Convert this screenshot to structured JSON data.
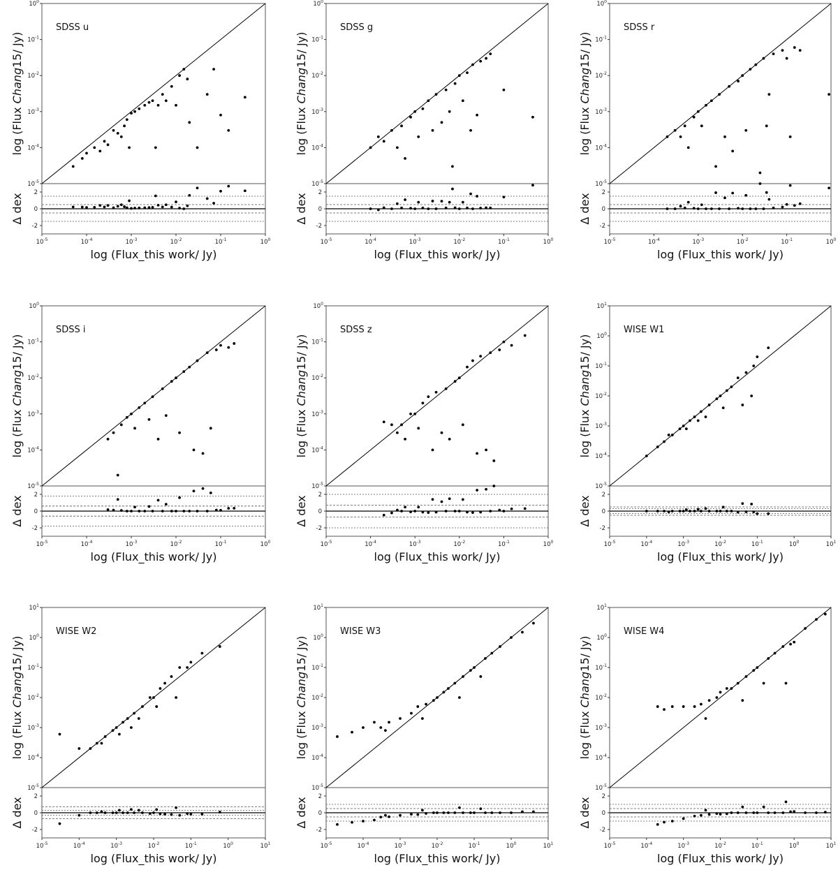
{
  "figure": {
    "xlabel": "log (Flux_this work/ Jy)",
    "ylabel_main": "log (Flux ",
    "ylabel_italic": "Chang",
    "ylabel_rest": "15/ Jy)",
    "resid_ylabel": "Δ dex",
    "resid_ticks": [
      -2,
      0,
      2
    ],
    "resid_range": [
      -3,
      3
    ],
    "colors": {
      "points": "#000000",
      "axes": "#555555",
      "guides": "#555555"
    }
  },
  "chart_data": [
    {
      "type": "scatter",
      "title": "SDSS u",
      "xlim_exp": [
        -5,
        0
      ],
      "ylim_exp": [
        -5,
        0
      ],
      "resid_lines": [
        0.5,
        -0.5,
        1.5,
        -1.5
      ],
      "x": [
        0.0003,
        0.0005,
        0.0002,
        0.0008,
        0.0004,
        0.001,
        0.002,
        0.0006,
        0.0015,
        0.003,
        0.005,
        0.008,
        0.012,
        0.015,
        0.018,
        0.0001,
        0.00015,
        0.00025,
        0.0007,
        0.0012,
        0.0025,
        0.004,
        0.006,
        0.01,
        0.02,
        0.03,
        0.05,
        0.07,
        0.1,
        0.15,
        0.35,
        5e-05,
        8e-05,
        0.0009,
        0.0035
      ],
      "y": [
        0.00012,
        0.00025,
        8e-05,
        0.0006,
        0.0003,
        0.0009,
        0.0015,
        0.0002,
        0.0012,
        0.002,
        0.003,
        0.005,
        0.01,
        0.015,
        0.008,
        7e-05,
        0.0001,
        0.00015,
        0.0004,
        0.001,
        0.0018,
        0.0015,
        0.002,
        0.0015,
        0.0005,
        0.0001,
        0.003,
        0.015,
        0.0008,
        0.0003,
        0.0025,
        3e-05,
        5e-05,
        0.0001,
        0.0001
      ]
    },
    {
      "type": "scatter",
      "title": "SDSS g",
      "xlim_exp": [
        -5,
        0
      ],
      "ylim_exp": [
        -5,
        0
      ],
      "resid_lines": [
        0.5,
        -0.5,
        1.5,
        -1.5
      ],
      "x": [
        0.0002,
        0.0003,
        0.0005,
        0.0008,
        0.001,
        0.0015,
        0.002,
        0.003,
        0.005,
        0.008,
        0.01,
        0.015,
        0.02,
        0.03,
        0.04,
        0.05,
        0.0004,
        0.0006,
        0.0012,
        0.0025,
        0.004,
        0.006,
        0.012,
        0.025,
        0.0001,
        0.00015,
        0.007,
        0.018,
        0.1,
        0.45
      ],
      "y": [
        0.00015,
        0.0003,
        0.0004,
        0.0007,
        0.001,
        0.0012,
        0.002,
        0.003,
        0.004,
        0.006,
        0.01,
        0.012,
        0.02,
        0.025,
        0.03,
        0.04,
        0.0001,
        5e-05,
        0.0002,
        0.0003,
        0.0005,
        0.001,
        0.002,
        0.0008,
        0.0001,
        0.0002,
        3e-05,
        0.0003,
        0.004,
        0.0007
      ]
    },
    {
      "type": "scatter",
      "title": "SDSS r",
      "xlim_exp": [
        -5,
        0
      ],
      "ylim_exp": [
        -5,
        0
      ],
      "resid_lines": [
        0.5,
        -0.5,
        1.5,
        -1.5
      ],
      "x": [
        0.0003,
        0.0005,
        0.0008,
        0.001,
        0.0015,
        0.002,
        0.003,
        0.005,
        0.008,
        0.01,
        0.015,
        0.02,
        0.03,
        0.05,
        0.08,
        0.1,
        0.15,
        0.2,
        0.0004,
        0.0006,
        0.0012,
        0.0025,
        0.004,
        0.006,
        0.012,
        0.025,
        0.04,
        0.0002,
        0.035,
        0.12,
        0.9
      ],
      "y": [
        0.0003,
        0.0004,
        0.0007,
        0.001,
        0.0015,
        0.002,
        0.003,
        0.005,
        0.007,
        0.01,
        0.015,
        0.02,
        0.03,
        0.04,
        0.05,
        0.03,
        0.06,
        0.05,
        0.0002,
        0.0001,
        0.0004,
        3e-05,
        0.0002,
        8e-05,
        0.0003,
        2e-05,
        0.003,
        0.0002,
        0.0004,
        0.0002,
        0.003
      ]
    },
    {
      "type": "scatter",
      "title": "SDSS i",
      "xlim_exp": [
        -5,
        0
      ],
      "ylim_exp": [
        -5,
        0
      ],
      "resid_lines": [
        0.6,
        -0.6,
        1.8,
        -1.8
      ],
      "x": [
        0.0004,
        0.0006,
        0.0008,
        0.001,
        0.0015,
        0.002,
        0.003,
        0.005,
        0.008,
        0.01,
        0.015,
        0.02,
        0.03,
        0.05,
        0.08,
        0.1,
        0.15,
        0.2,
        0.0012,
        0.0025,
        0.004,
        0.006,
        0.012,
        0.025,
        0.04,
        0.06,
        0.0005,
        0.0003
      ],
      "y": [
        0.0003,
        0.0005,
        0.0008,
        0.001,
        0.0015,
        0.002,
        0.003,
        0.005,
        0.008,
        0.01,
        0.015,
        0.02,
        0.03,
        0.05,
        0.06,
        0.08,
        0.07,
        0.09,
        0.0004,
        0.0007,
        0.0002,
        0.0009,
        0.0003,
        0.0001,
        8e-05,
        0.0004,
        2e-05,
        0.0002
      ]
    },
    {
      "type": "scatter",
      "title": "SDSS z",
      "xlim_exp": [
        -5,
        0
      ],
      "ylim_exp": [
        -5,
        0
      ],
      "resid_lines": [
        0.7,
        -0.7,
        2.0,
        -2.0
      ],
      "x": [
        0.0003,
        0.0005,
        0.0008,
        0.001,
        0.0015,
        0.002,
        0.003,
        0.005,
        0.008,
        0.01,
        0.015,
        0.02,
        0.03,
        0.05,
        0.08,
        0.1,
        0.15,
        0.3,
        0.0004,
        0.0006,
        0.0012,
        0.0025,
        0.004,
        0.006,
        0.012,
        0.025,
        0.04,
        0.06,
        0.0002
      ],
      "y": [
        0.0005,
        0.0005,
        0.001,
        0.001,
        0.002,
        0.003,
        0.004,
        0.005,
        0.008,
        0.01,
        0.02,
        0.03,
        0.04,
        0.05,
        0.06,
        0.1,
        0.08,
        0.15,
        0.0003,
        0.0002,
        0.0004,
        0.0001,
        0.0003,
        0.0002,
        0.0005,
        8e-05,
        0.0001,
        5e-05,
        0.0006
      ]
    },
    {
      "type": "scatter",
      "title": "WISE W1",
      "xlim_exp": [
        -5,
        1
      ],
      "ylim_exp": [
        -5,
        1
      ],
      "resid_lines": [
        0.5,
        -0.5,
        0.3,
        -0.3
      ],
      "x": [
        0.0001,
        0.0002,
        0.0003,
        0.0005,
        0.0008,
        0.001,
        0.0015,
        0.002,
        0.003,
        0.005,
        0.008,
        0.01,
        0.015,
        0.02,
        0.03,
        0.05,
        0.08,
        0.1,
        0.2,
        0.0004,
        0.0012,
        0.0025,
        0.004,
        0.012,
        0.04,
        0.07
      ],
      "y": [
        0.0001,
        0.0002,
        0.0003,
        0.0005,
        0.0008,
        0.001,
        0.0015,
        0.002,
        0.003,
        0.005,
        0.008,
        0.01,
        0.015,
        0.02,
        0.04,
        0.06,
        0.1,
        0.2,
        0.4,
        0.0005,
        0.0008,
        0.0015,
        0.002,
        0.004,
        0.005,
        0.01
      ]
    },
    {
      "type": "scatter",
      "title": "WISE W2",
      "xlim_exp": [
        -5,
        1
      ],
      "ylim_exp": [
        -5,
        1
      ],
      "resid_lines": [
        0.7,
        -0.7,
        0.3,
        -0.3
      ],
      "x": [
        0.0001,
        0.0002,
        0.0003,
        0.0005,
        0.0008,
        0.001,
        0.0015,
        0.002,
        0.003,
        0.005,
        0.008,
        0.01,
        0.015,
        0.02,
        0.03,
        0.05,
        0.08,
        0.1,
        0.2,
        0.0004,
        0.0012,
        0.0025,
        0.004,
        0.012,
        0.04,
        0.6,
        3e-05
      ],
      "y": [
        0.0002,
        0.0002,
        0.0003,
        0.0005,
        0.0008,
        0.001,
        0.0015,
        0.002,
        0.003,
        0.005,
        0.01,
        0.01,
        0.02,
        0.03,
        0.05,
        0.1,
        0.1,
        0.15,
        0.3,
        0.0003,
        0.0006,
        0.001,
        0.002,
        0.005,
        0.01,
        0.5,
        0.0006
      ]
    },
    {
      "type": "scatter",
      "title": "WISE W3",
      "xlim_exp": [
        -5,
        1
      ],
      "ylim_exp": [
        -5,
        1
      ],
      "resid_lines": [
        0.5,
        -0.5,
        1.0,
        -1.0
      ],
      "x": [
        2e-05,
        5e-05,
        0.0001,
        0.0002,
        0.0003,
        0.0005,
        0.001,
        0.002,
        0.003,
        0.005,
        0.008,
        0.01,
        0.015,
        0.02,
        0.03,
        0.05,
        0.08,
        0.1,
        0.2,
        0.3,
        0.5,
        1.0,
        2.0,
        4.0,
        0.0004,
        0.004,
        0.04,
        0.15
      ],
      "y": [
        0.0005,
        0.0007,
        0.001,
        0.0015,
        0.001,
        0.0015,
        0.002,
        0.003,
        0.005,
        0.006,
        0.008,
        0.01,
        0.015,
        0.02,
        0.03,
        0.05,
        0.08,
        0.1,
        0.2,
        0.3,
        0.5,
        1.0,
        1.5,
        3.0,
        0.0008,
        0.002,
        0.01,
        0.05
      ]
    },
    {
      "type": "scatter",
      "title": "WISE W4",
      "xlim_exp": [
        -5,
        1
      ],
      "ylim_exp": [
        -5,
        1
      ],
      "resid_lines": [
        0.5,
        -0.5,
        1.0,
        -1.0
      ],
      "x": [
        0.0002,
        0.0003,
        0.0005,
        0.001,
        0.002,
        0.003,
        0.005,
        0.008,
        0.01,
        0.015,
        0.02,
        0.03,
        0.05,
        0.08,
        0.1,
        0.2,
        0.3,
        0.5,
        0.8,
        1.0,
        2.0,
        4.0,
        7.0,
        0.004,
        0.04,
        0.15,
        0.6
      ],
      "y": [
        0.005,
        0.004,
        0.005,
        0.005,
        0.005,
        0.006,
        0.008,
        0.01,
        0.015,
        0.02,
        0.02,
        0.03,
        0.05,
        0.08,
        0.1,
        0.2,
        0.3,
        0.5,
        0.6,
        0.7,
        2.0,
        4.0,
        6.0,
        0.002,
        0.008,
        0.03,
        0.03
      ]
    }
  ]
}
